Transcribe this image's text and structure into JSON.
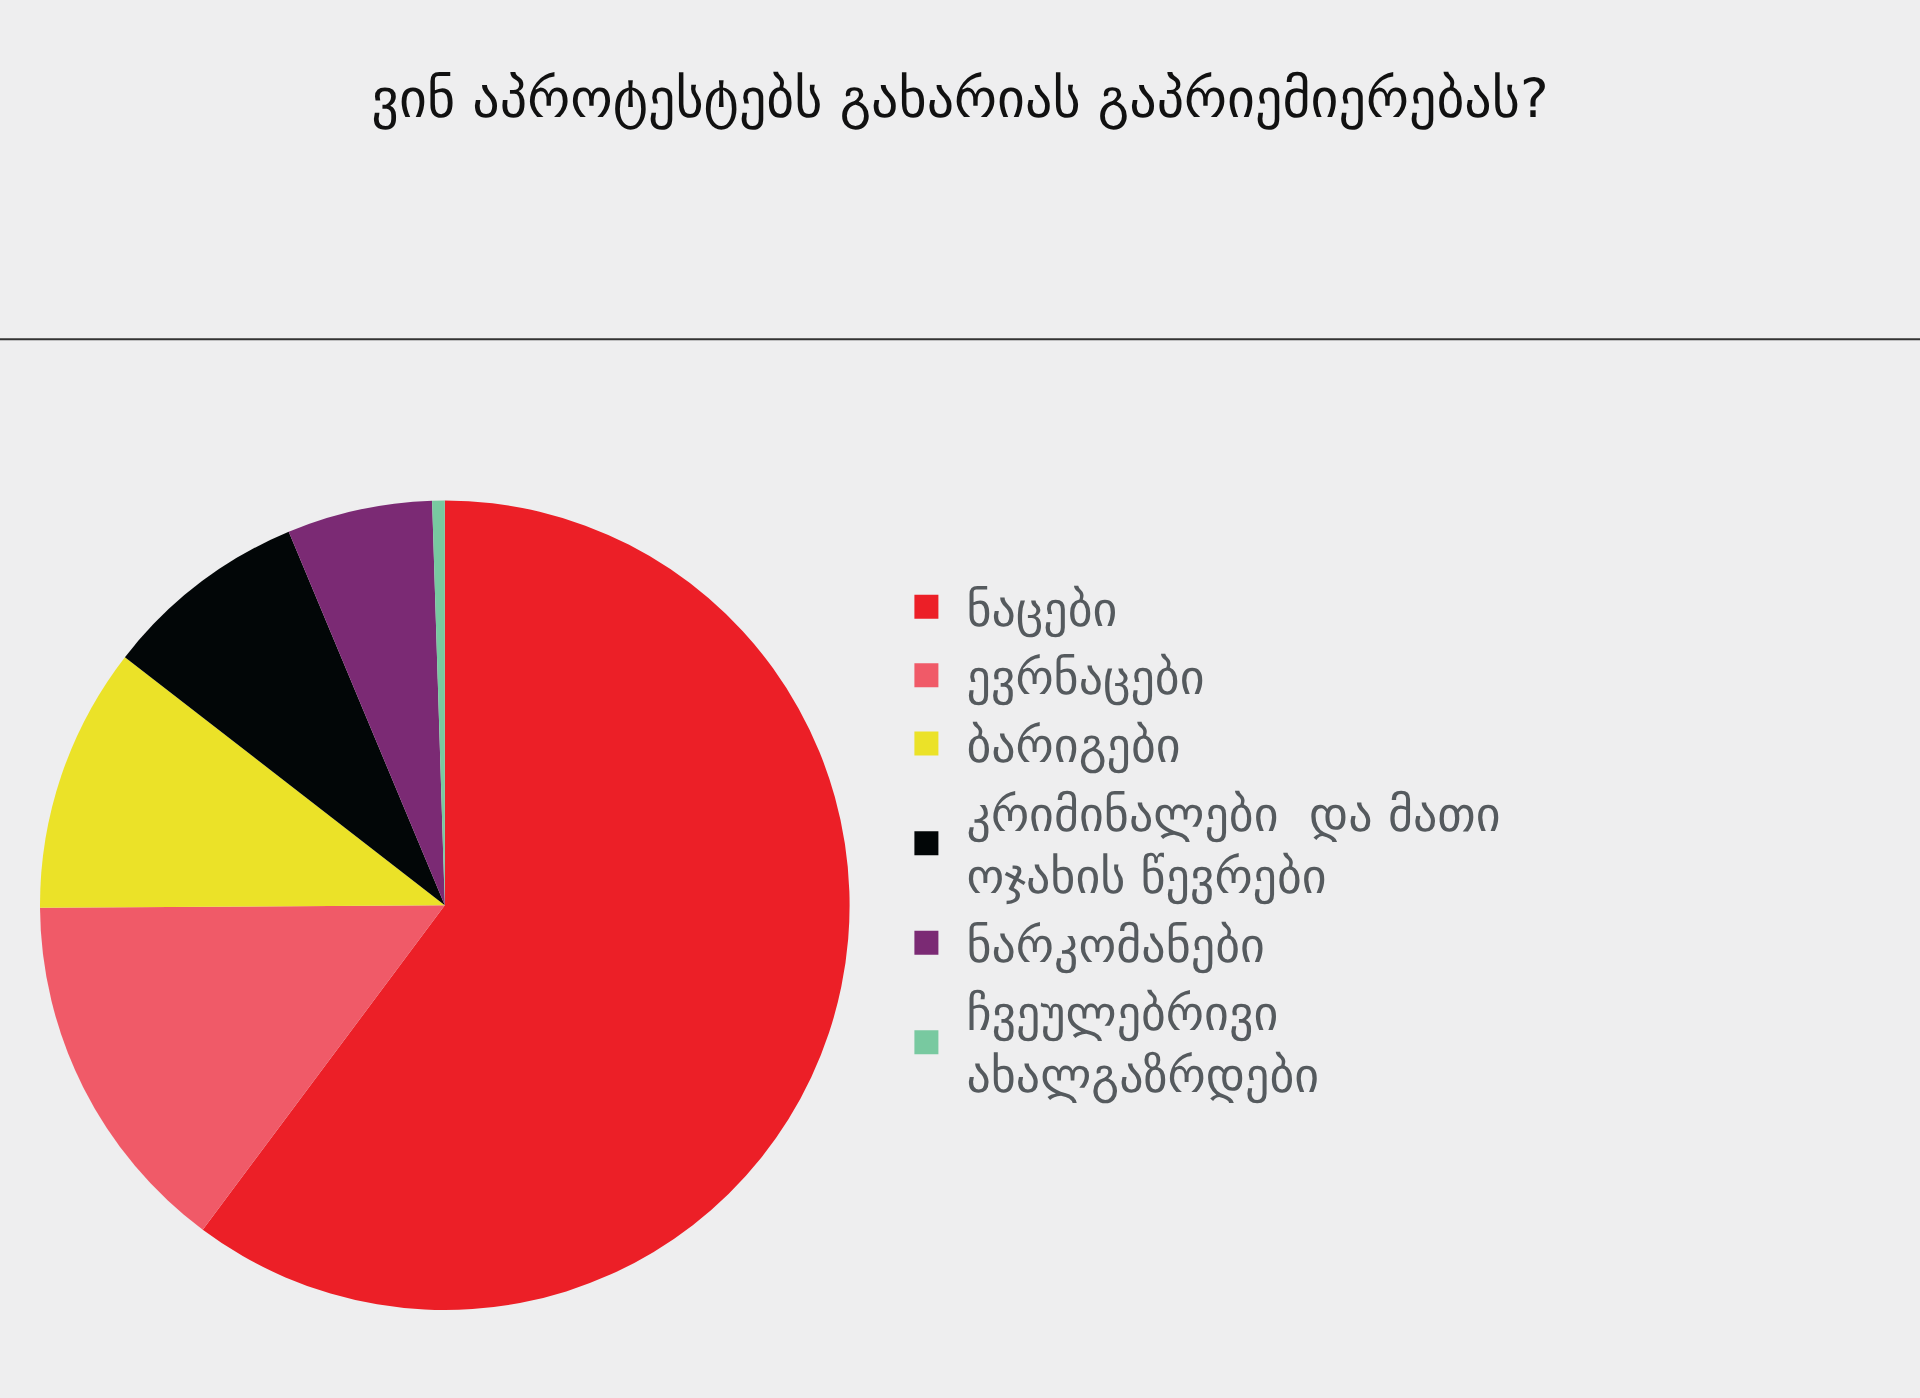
{
  "chart_data": {
    "type": "pie",
    "title": "ვინ აპროტესტებს გახარიას გაპრიემიერებას?",
    "categories": [
      "ნაცები",
      "ევრნაცები",
      "ბარიგები",
      "კრიმინალები  და მათი\nოჯახის წევრები",
      "ნარკომანები",
      "ჩვეულებრივი\nახალგაზრდები"
    ],
    "values": [
      60.2,
      14.7,
      10.6,
      8.2,
      5.8,
      0.5
    ],
    "colors": [
      "#ec1f27",
      "#f05a68",
      "#ebe228",
      "#020607",
      "#7b2a74",
      "#78c9a0"
    ],
    "legend": "right"
  }
}
